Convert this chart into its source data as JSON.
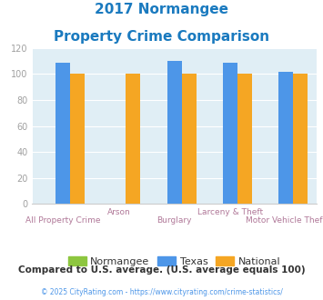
{
  "title_line1": "2017 Normangee",
  "title_line2": "Property Crime Comparison",
  "categories": [
    "All Property Crime",
    "Arson",
    "Burglary",
    "Larceny & Theft",
    "Motor Vehicle Theft"
  ],
  "normangee_values": [
    0,
    0,
    0,
    0,
    0
  ],
  "texas_values": [
    109,
    0,
    110,
    109,
    102
  ],
  "national_values": [
    100,
    100,
    100,
    100,
    100
  ],
  "normangee_color": "#8dc63f",
  "texas_color": "#4d96e8",
  "national_color": "#f5a623",
  "ylim": [
    0,
    120
  ],
  "yticks": [
    0,
    20,
    40,
    60,
    80,
    100,
    120
  ],
  "legend_labels": [
    "Normangee",
    "Texas",
    "National"
  ],
  "footnote1": "Compared to U.S. average. (U.S. average equals 100)",
  "footnote2": "© 2025 CityRating.com - https://www.cityrating.com/crime-statistics/",
  "title_color": "#1a7abf",
  "ytick_color": "#a0a0a0",
  "xlabel_color_upper": "#b07898",
  "xlabel_color_lower": "#b07898",
  "legend_text_color": "#333333",
  "footnote1_color": "#333333",
  "footnote2_color": "#4d96e8",
  "chart_bg_color": "#e0eef5",
  "figure_bg_color": "#ffffff",
  "grid_color": "#ffffff",
  "row1_labels": {
    "1": "Arson",
    "3": "Larceny & Theft"
  },
  "row2_labels": {
    "0": "All Property Crime",
    "2": "Burglary",
    "4": "Motor Vehicle Theft"
  }
}
